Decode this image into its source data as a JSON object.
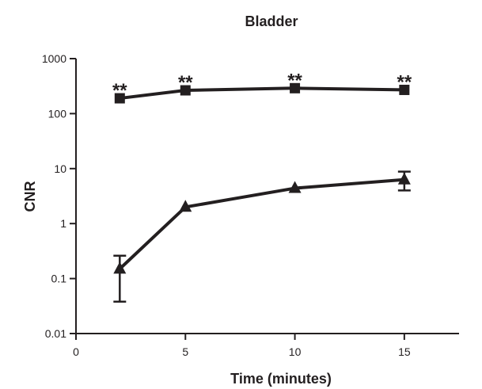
{
  "chart_data": {
    "type": "line",
    "title": "Bladder",
    "xlabel": "Time (minutes)",
    "ylabel": "CNR",
    "xlim": [
      0,
      17.5
    ],
    "ylim": [
      0.01,
      1000
    ],
    "yscale": "log",
    "grid": false,
    "x_ticks": [
      {
        "value": 0,
        "label": "0"
      },
      {
        "value": 5,
        "label": "5"
      },
      {
        "value": 10,
        "label": "10"
      },
      {
        "value": 15,
        "label": "15"
      }
    ],
    "y_ticks": [
      {
        "value": 1000,
        "label": "1000"
      },
      {
        "value": 100,
        "label": "100"
      },
      {
        "value": 10,
        "label": "10"
      },
      {
        "value": 1,
        "label": "1"
      },
      {
        "value": 0.1,
        "label": "0.1"
      },
      {
        "value": 0.01,
        "label": "0.01"
      }
    ],
    "series": [
      {
        "marker": "square",
        "color": "#231f20",
        "points": [
          {
            "x": 2,
            "y": 190
          },
          {
            "x": 5,
            "y": 265
          },
          {
            "x": 10,
            "y": 290
          },
          {
            "x": 15,
            "y": 270
          }
        ]
      },
      {
        "marker": "triangle",
        "color": "#231f20",
        "points": [
          {
            "x": 2,
            "y": 0.15,
            "err_low": 0.038,
            "err_high": 0.26
          },
          {
            "x": 5,
            "y": 2.0
          },
          {
            "x": 10,
            "y": 4.4
          },
          {
            "x": 15,
            "y": 6.3,
            "err_low": 4.0,
            "err_high": 8.8
          }
        ]
      }
    ],
    "annotations": [
      {
        "x": 2,
        "text": "**"
      },
      {
        "x": 5,
        "text": "**"
      },
      {
        "x": 10,
        "text": "**"
      },
      {
        "x": 15,
        "text": "**"
      }
    ]
  }
}
